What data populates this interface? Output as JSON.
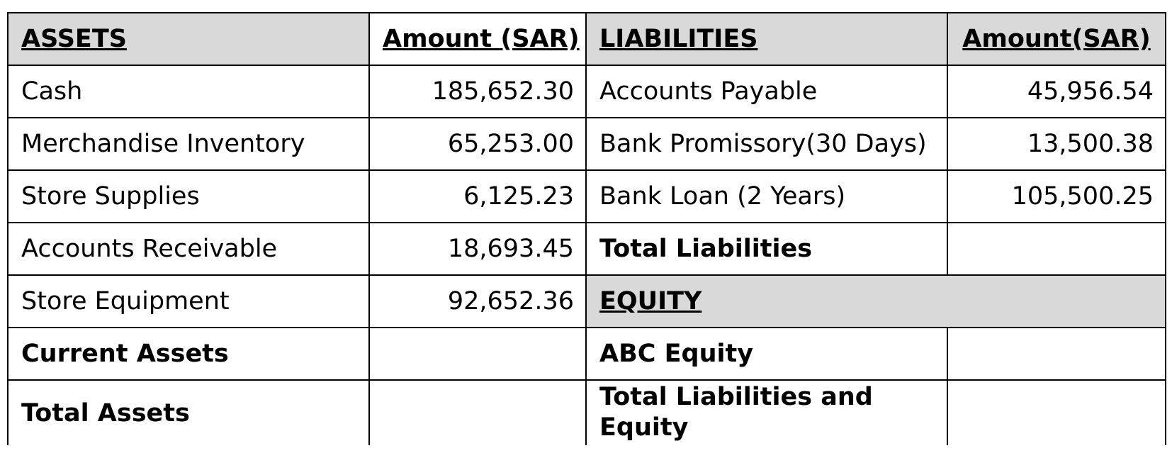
{
  "assets": {
    "header": "ASSETS",
    "amount_header": "Amount (SAR)",
    "rows": [
      {
        "label": "Cash",
        "amount": "185,652.30"
      },
      {
        "label": "Merchandise Inventory",
        "amount": "65,253.00"
      },
      {
        "label": "Store Supplies",
        "amount": "6,125.23"
      },
      {
        "label": "Accounts Receivable",
        "amount": "18,693.45"
      },
      {
        "label": "Store Equipment",
        "amount": "92,652.36"
      }
    ],
    "current_assets_label": "Current Assets",
    "current_assets_amount": "",
    "total_assets_label": "Total Assets",
    "total_assets_amount": ""
  },
  "liabilities": {
    "header": "LIABILITIES",
    "amount_header": "Amount(SAR)",
    "rows": [
      {
        "label": "Accounts Payable",
        "amount": "45,956.54"
      },
      {
        "label": "Bank Promissory(30 Days)",
        "amount": "13,500.38"
      },
      {
        "label": "Bank Loan (2 Years)",
        "amount": "105,500.25"
      }
    ],
    "total_liabilities_label": "Total Liabilities",
    "total_liabilities_amount": ""
  },
  "equity": {
    "header": "EQUITY",
    "abc_equity_label": "ABC Equity",
    "abc_equity_amount": "",
    "total_le_label": "Total Liabilities and Equity",
    "total_le_amount": ""
  },
  "colors": {
    "header_fill": "#d9d9d9",
    "border": "#000000",
    "text": "#000000"
  }
}
